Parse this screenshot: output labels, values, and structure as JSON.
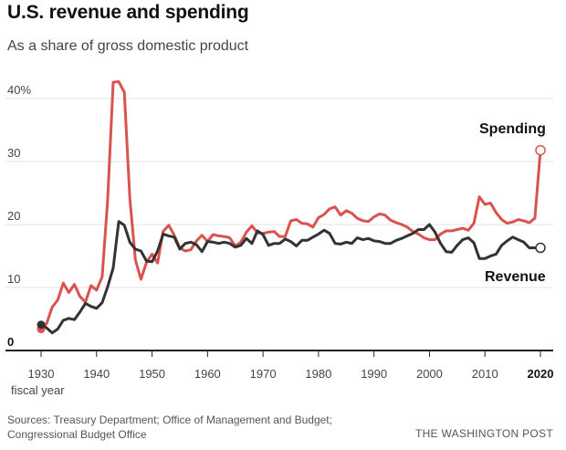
{
  "header": {
    "title": "U.S. revenue and spending",
    "subtitle": "As a share of gross domestic product"
  },
  "footer": {
    "sources_line1": "Sources: Treasury Department; Office of Management and Budget;",
    "sources_line2": "Congressional Budget Office",
    "credit": "THE WASHINGTON POST"
  },
  "colors": {
    "spending": "#d9534f",
    "revenue": "#333333",
    "grid": "#e3e3e3",
    "axis": "#222222"
  },
  "chart_data": {
    "type": "line",
    "title": "U.S. revenue and spending",
    "subtitle": "As a share of gross domestic product",
    "xlabel": "fiscal year",
    "ylabel": "",
    "xlim": [
      1930,
      2020
    ],
    "ylim": [
      0,
      40
    ],
    "x_ticks": [
      1930,
      1940,
      1950,
      1960,
      1970,
      1980,
      1990,
      2000,
      2010,
      2020
    ],
    "x_tick_labels": [
      "1930",
      "1940",
      "1950",
      "1960",
      "1970",
      "1980",
      "1990",
      "2000",
      "2010",
      "2020"
    ],
    "y_ticks": [
      0,
      10,
      20,
      30,
      40
    ],
    "y_tick_labels": [
      "0",
      "10",
      "20",
      "30",
      "40%"
    ],
    "grid": true,
    "series": [
      {
        "name": "Spending",
        "color": "#d9534f",
        "x": [
          1930,
          1931,
          1932,
          1933,
          1934,
          1935,
          1936,
          1937,
          1938,
          1939,
          1940,
          1941,
          1942,
          1943,
          1944,
          1945,
          1946,
          1947,
          1948,
          1949,
          1950,
          1951,
          1952,
          1953,
          1954,
          1955,
          1956,
          1957,
          1958,
          1959,
          1960,
          1961,
          1962,
          1963,
          1964,
          1965,
          1966,
          1967,
          1968,
          1969,
          1970,
          1971,
          1972,
          1973,
          1974,
          1975,
          1976,
          1977,
          1978,
          1979,
          1980,
          1981,
          1982,
          1983,
          1984,
          1985,
          1986,
          1987,
          1988,
          1989,
          1990,
          1991,
          1992,
          1993,
          1994,
          1995,
          1996,
          1997,
          1998,
          1999,
          2000,
          2001,
          2002,
          2003,
          2004,
          2005,
          2006,
          2007,
          2008,
          2009,
          2010,
          2011,
          2012,
          2013,
          2014,
          2015,
          2016,
          2017,
          2018,
          2019,
          2020
        ],
        "y": [
          3.4,
          4.3,
          6.9,
          8.0,
          10.7,
          9.2,
          10.5,
          8.6,
          7.7,
          10.3,
          9.6,
          11.7,
          23.8,
          42.6,
          42.7,
          41.0,
          24.2,
          14.4,
          11.3,
          14.0,
          15.3,
          13.9,
          18.9,
          19.9,
          18.3,
          16.3,
          15.8,
          16.0,
          17.4,
          18.3,
          17.3,
          18.4,
          18.2,
          18.1,
          17.9,
          16.6,
          17.2,
          18.8,
          19.8,
          18.7,
          18.6,
          18.8,
          18.9,
          18.1,
          18.1,
          20.6,
          20.8,
          20.2,
          20.1,
          19.6,
          21.1,
          21.6,
          22.5,
          22.8,
          21.5,
          22.2,
          21.8,
          21.0,
          20.6,
          20.5,
          21.2,
          21.7,
          21.5,
          20.7,
          20.3,
          20.0,
          19.6,
          18.9,
          18.5,
          17.9,
          17.6,
          17.6,
          18.5,
          19.0,
          19.0,
          19.2,
          19.4,
          19.1,
          20.2,
          24.4,
          23.2,
          23.4,
          21.9,
          20.8,
          20.2,
          20.4,
          20.8,
          20.6,
          20.3,
          21.0,
          31.8
        ]
      },
      {
        "name": "Revenue",
        "color": "#333333",
        "x": [
          1930,
          1931,
          1932,
          1933,
          1934,
          1935,
          1936,
          1937,
          1938,
          1939,
          1940,
          1941,
          1942,
          1943,
          1944,
          1945,
          1946,
          1947,
          1948,
          1949,
          1950,
          1951,
          1952,
          1953,
          1954,
          1955,
          1956,
          1957,
          1958,
          1959,
          1960,
          1961,
          1962,
          1963,
          1964,
          1965,
          1966,
          1967,
          1968,
          1969,
          1970,
          1971,
          1972,
          1973,
          1974,
          1975,
          1976,
          1977,
          1978,
          1979,
          1980,
          1981,
          1982,
          1983,
          1984,
          1985,
          1986,
          1987,
          1988,
          1989,
          1990,
          1991,
          1992,
          1993,
          1994,
          1995,
          1996,
          1997,
          1998,
          1999,
          2000,
          2001,
          2002,
          2003,
          2004,
          2005,
          2006,
          2007,
          2008,
          2009,
          2010,
          2011,
          2012,
          2013,
          2014,
          2015,
          2016,
          2017,
          2018,
          2019,
          2020
        ],
        "y": [
          4.1,
          3.6,
          2.8,
          3.4,
          4.8,
          5.1,
          4.9,
          6.1,
          7.5,
          7.0,
          6.7,
          7.6,
          10.1,
          13.1,
          20.5,
          19.9,
          17.2,
          16.1,
          15.8,
          14.2,
          14.1,
          15.8,
          18.5,
          18.2,
          18.0,
          16.1,
          17.0,
          17.2,
          16.8,
          15.7,
          17.3,
          17.2,
          17.0,
          17.2,
          17.0,
          16.4,
          16.7,
          17.8,
          17.0,
          19.0,
          18.4,
          16.7,
          17.0,
          17.0,
          17.7,
          17.3,
          16.6,
          17.5,
          17.5,
          18.0,
          18.5,
          19.1,
          18.6,
          17.0,
          16.9,
          17.2,
          17.0,
          17.9,
          17.6,
          17.8,
          17.4,
          17.3,
          17.0,
          17.0,
          17.5,
          17.8,
          18.2,
          18.6,
          19.2,
          19.2,
          20.0,
          18.8,
          17.0,
          15.7,
          15.6,
          16.7,
          17.6,
          17.9,
          17.1,
          14.6,
          14.6,
          15.0,
          15.3,
          16.7,
          17.4,
          18.0,
          17.6,
          17.2,
          16.3,
          16.3,
          16.3
        ]
      }
    ],
    "labels": [
      {
        "text": "Spending",
        "series": "Spending"
      },
      {
        "text": "Revenue",
        "series": "Revenue"
      }
    ]
  }
}
